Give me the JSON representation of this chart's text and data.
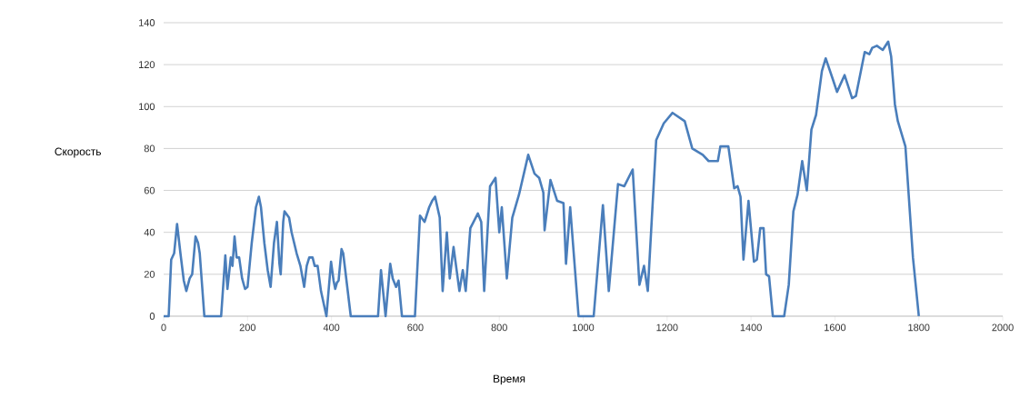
{
  "chart_data": {
    "type": "line",
    "xlabel": "Время",
    "ylabel": "Скорость",
    "xlim": [
      0,
      2000
    ],
    "ylim": [
      0,
      140
    ],
    "xticks": [
      0,
      200,
      400,
      600,
      800,
      1000,
      1200,
      1400,
      1600,
      1800,
      2000
    ],
    "yticks": [
      0,
      20,
      40,
      60,
      80,
      100,
      120,
      140
    ],
    "grid": "y",
    "marker": "none",
    "line_style": "solid",
    "series": [
      {
        "color": "#4a7ebb",
        "x": [
          0,
          12,
          18,
          25,
          32,
          40,
          48,
          54,
          62,
          68,
          76,
          82,
          86,
          97,
          137,
          147,
          152,
          160,
          164,
          169,
          174,
          180,
          187,
          194,
          200,
          210,
          220,
          227,
          232,
          240,
          248,
          255,
          263,
          270,
          276,
          279,
          285,
          288,
          299,
          305,
          317,
          326,
          335,
          341,
          347,
          355,
          360,
          367,
          375,
          388,
          399,
          405,
          409,
          413,
          417,
          424,
          428,
          446,
          511,
          518,
          524,
          529,
          540,
          546,
          554,
          560,
          568,
          599,
          611,
          622,
          633,
          640,
          647,
          658,
          665,
          675,
          682,
          691,
          705,
          713,
          720,
          731,
          749,
          757,
          764,
          778,
          791,
          800,
          806,
          818,
          831,
          847,
          869,
          884,
          895,
          905,
          908,
          922,
          938,
          953,
          959,
          969,
          989,
          1025,
          1047,
          1061,
          1083,
          1098,
          1118,
          1134,
          1145,
          1154,
          1174,
          1192,
          1213,
          1242,
          1260,
          1285,
          1299,
          1321,
          1327,
          1346,
          1360,
          1368,
          1375,
          1382,
          1394,
          1407,
          1414,
          1422,
          1430,
          1436,
          1443,
          1452,
          1479,
          1490,
          1501,
          1511,
          1522,
          1533,
          1544,
          1555,
          1569,
          1578,
          1595,
          1605,
          1623,
          1641,
          1650,
          1671,
          1682,
          1689,
          1700,
          1714,
          1727,
          1734,
          1743,
          1750,
          1768,
          1786,
          1800
        ],
        "values": [
          0,
          0,
          27,
          30,
          44,
          30,
          17,
          12,
          18,
          20,
          38,
          35,
          30,
          0,
          0,
          29,
          13,
          28,
          24,
          38,
          28,
          28,
          18,
          13,
          14,
          35,
          52,
          57,
          52,
          35,
          22,
          14,
          35,
          45,
          25,
          20,
          45,
          50,
          47,
          40,
          30,
          24,
          14,
          24,
          28,
          28,
          24,
          24,
          12,
          0,
          26,
          17,
          13,
          16,
          17,
          32,
          30,
          0,
          0,
          22,
          10,
          0,
          25,
          18,
          14,
          17,
          0,
          0,
          48,
          45,
          52,
          55,
          57,
          47,
          12,
          40,
          18,
          33,
          12,
          22,
          12,
          42,
          49,
          45,
          12,
          62,
          66,
          40,
          52,
          18,
          47,
          58,
          77,
          68,
          66,
          59,
          41,
          65,
          55,
          54,
          25,
          52,
          0,
          0,
          53,
          12,
          63,
          62,
          70,
          15,
          24,
          12,
          84,
          92,
          97,
          93,
          80,
          77,
          74,
          74,
          81,
          81,
          61,
          62,
          57,
          27,
          55,
          26,
          27,
          42,
          42,
          20,
          19,
          0,
          0,
          15,
          50,
          58,
          74,
          60,
          89,
          96,
          117,
          123,
          113,
          107,
          115,
          104,
          105,
          126,
          125,
          128,
          129,
          127,
          131,
          124,
          101,
          93,
          81,
          28,
          0
        ]
      }
    ]
  }
}
